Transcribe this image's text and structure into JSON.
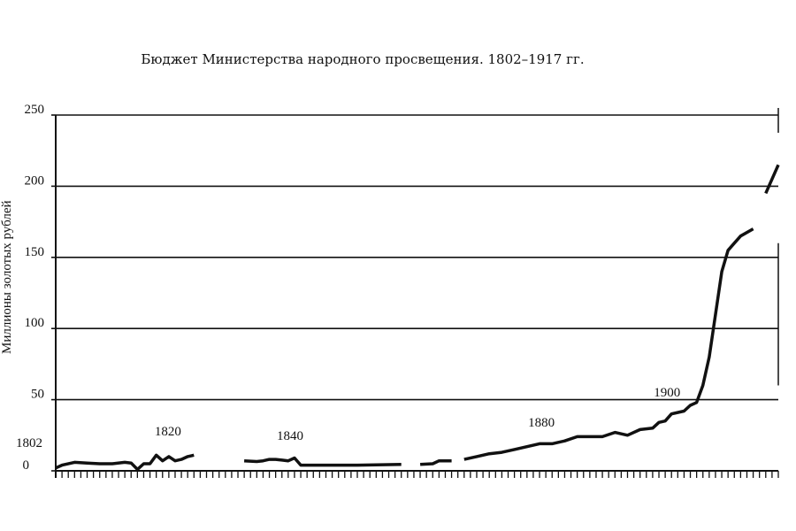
{
  "chart_data": {
    "type": "line",
    "title": "Бюджет Министерства народного просвещения. 1802–1917 гг.",
    "xlabel": "",
    "ylabel": "Миллионы золотых рублей",
    "xlim": [
      1802,
      1917
    ],
    "ylim": [
      0,
      250
    ],
    "yticks": [
      0,
      50,
      100,
      150,
      200,
      250
    ],
    "grid": true,
    "annotations": [
      {
        "text": "1802",
        "x": 1802
      },
      {
        "text": "1820",
        "x": 1820
      },
      {
        "text": "1840",
        "x": 1840
      },
      {
        "text": "1880",
        "x": 1880
      },
      {
        "text": "1900",
        "x": 1900
      }
    ],
    "segments": [
      {
        "x": [
          1802,
          1803,
          1805,
          1807,
          1809,
          1811,
          1813,
          1814,
          1815,
          1816,
          1817,
          1818,
          1819,
          1820,
          1821,
          1822,
          1823,
          1824
        ],
        "y": [
          2,
          4,
          6,
          5.5,
          5,
          5,
          6,
          5.5,
          1,
          5,
          5,
          11,
          7,
          10,
          7,
          8,
          10,
          11
        ]
      },
      {
        "x": [
          1832,
          1834,
          1835,
          1836,
          1837,
          1838,
          1839,
          1840,
          1841,
          1845,
          1850,
          1857
        ],
        "y": [
          7,
          6.5,
          7,
          8,
          8,
          7.5,
          7,
          9,
          4,
          4,
          4,
          4.5
        ]
      },
      {
        "x": [
          1860,
          1862,
          1863,
          1865
        ],
        "y": [
          4.5,
          5,
          7,
          7
        ]
      },
      {
        "x": [
          1867,
          1869,
          1871,
          1873,
          1875,
          1877,
          1879,
          1881,
          1883,
          1885,
          1887,
          1889,
          1891,
          1893,
          1895,
          1897,
          1898,
          1899,
          1900,
          1902,
          1903,
          1904,
          1905,
          1906,
          1907,
          1908,
          1909,
          1910,
          1911,
          1913
        ],
        "y": [
          8,
          10,
          12,
          13,
          15,
          17,
          19,
          19,
          21,
          24,
          24,
          24,
          27,
          25,
          29,
          30,
          34,
          35,
          40,
          42,
          46,
          48,
          60,
          80,
          110,
          140,
          155,
          160,
          165,
          170
        ]
      },
      {
        "x": [
          1915,
          1917
        ],
        "y": [
          195,
          215
        ]
      }
    ]
  }
}
